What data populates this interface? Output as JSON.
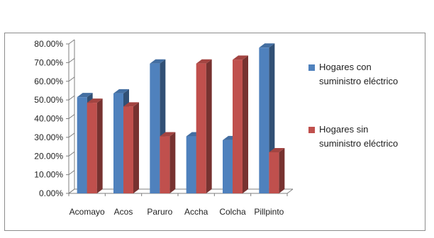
{
  "chart_data": {
    "type": "bar",
    "categories": [
      "Acomayo",
      "Acos",
      "Paruro",
      "Accha",
      "Colcha",
      "Pillpinto"
    ],
    "series": [
      {
        "name": "Hogares con suministro eléctrico",
        "values": [
          51.5,
          53.5,
          69.5,
          30.5,
          28.5,
          78.0
        ],
        "color": "#4f81bd",
        "legend_lines": [
          "Hogares con",
          "suministro eléctrico"
        ]
      },
      {
        "name": "Hogares sin suministro eléctrico",
        "values": [
          48.5,
          46.5,
          30.5,
          69.5,
          71.5,
          22.0
        ],
        "color": "#c0504d",
        "legend_lines": [
          "Hogares sin",
          "suministro eléctrico"
        ]
      }
    ],
    "y_ticks": [
      "0.00%",
      "10.00%",
      "20.00%",
      "30.00%",
      "40.00%",
      "50.00%",
      "60.00%",
      "70.00%",
      "80.00%"
    ],
    "ylim": [
      0,
      80
    ],
    "title": "",
    "xlabel": "",
    "ylabel": "",
    "grid": false,
    "legend": "right"
  }
}
